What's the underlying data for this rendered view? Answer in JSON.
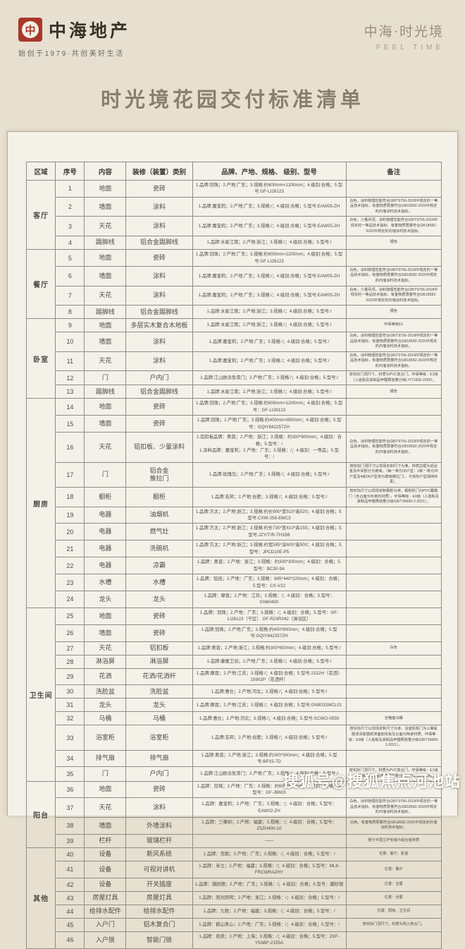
{
  "colors": {
    "page_bg": "#e7e0d0",
    "paper_bg": "#f4f1e9",
    "seal_red": "#a9382c",
    "title_color": "#8b7e6d",
    "table_border": "#8f8c85"
  },
  "header": {
    "brand_name": "中海地产",
    "brand_tagline": "始创于1979·共创美好生活",
    "seal_glyph": "中",
    "project_logo_line1": "中海·时光境",
    "project_logo_line2": "FEEL TIME"
  },
  "title": "时光境花园交付标准清单",
  "watermark": "搜狐号@搜狐焦点河池站",
  "table": {
    "columns": [
      "区域",
      "序号",
      "内容",
      "装修（装置）类别",
      "品牌、产地、规格、 级别、型号",
      "备注"
    ],
    "sections": [
      {
        "area": "客厅",
        "rows": [
          {
            "no": "1",
            "content": "地面",
            "category": "瓷砖",
            "spec": "1.品牌:冠珠；2.产地:广东；3.规格:约600mm×1200mm；4.级别:合格；5.型号:GF-LI26123",
            "remark": ""
          },
          {
            "no": "2",
            "content": "墙面",
            "category": "涂料",
            "spec": "1.品牌:嘉宝莉；2.产地:广东；3.规格:/；4.级别:合格；5.型号:EAW05-ZH",
            "remark": "白色，涂料物理性能符合GB/T9756-2018中规定的一等品技术指标，有害物质限量符合GB18582-2020中规定的内墙涂料技术指标。"
          },
          {
            "no": "3",
            "content": "天花",
            "category": "涂料",
            "spec": "1.品牌:嘉宝莉；2.产地:广东；3.规格:/；4.级别:合格；5.型号:EAW05-ZH",
            "remark": "白色，少量吊顶，涂料物理性能符合GB/T9756-2018中规定的一等品技术指标，有害物质限量符合GB18582-2020中规定的内墙涂料技术指标。"
          },
          {
            "no": "4",
            "content": "踢脚线",
            "category": "铝合金踢脚线",
            "spec": "1.品牌:水星江南；2.产地:浙江；3.规格:/；4.级别:合格；5.型号:/",
            "remark": "银色"
          }
        ]
      },
      {
        "area": "餐厅",
        "rows": [
          {
            "no": "5",
            "content": "地面",
            "category": "瓷砖",
            "spec": "1.品牌:冠珠；2.产地:广东；3.规格:约600mm×1200mm；4.级别:合格；5.型号:GF-LI26123",
            "remark": ""
          },
          {
            "no": "6",
            "content": "墙面",
            "category": "涂料",
            "spec": "1.品牌:嘉宝莉；2.产地:广东；3.规格:/；4.级别:合格；5.型号:EAW05-ZH",
            "remark": "白色，涂料物理性能符合GB/T9756-2018中规定的一等品技术指标，有害物质限量符合GB18582-2020中规定的内墙涂料技术指标。"
          },
          {
            "no": "7",
            "content": "天花",
            "category": "涂料",
            "spec": "1.品牌:嘉宝莉；2.产地:广东；3.规格:/；4.级别:合格；5.型号:EAW05-ZH",
            "remark": "白色，少量吊顶，涂料物理性能符合GB/T9756-2018中规定的一等品技术指标，有害物质限量符合GB18582-2020中规定的内墙涂料技术指标。"
          },
          {
            "no": "8",
            "content": "踢脚线",
            "category": "铝合金踢脚线",
            "spec": "1.品牌:水星江南；2.产地:浙江；3.规格:/；4.级别:合格；5.型号:/",
            "remark": "银色"
          }
        ]
      },
      {
        "area": "卧室",
        "rows": [
          {
            "no": "9",
            "content": "地面",
            "category": "多层实木复合木地板",
            "spec": "1.品牌:水星江南；2.产地:浙江；3.规格:/；4.级别:合格；5.型号:/",
            "remark": "环保等级E1"
          },
          {
            "no": "10",
            "content": "墙面",
            "category": "涂料",
            "spec": "1.品牌:嘉宝莉；2.产地:广东；3.规格:/；4.级别:合格；5.型号:/",
            "remark": "白色，涂料物理性能符合GB/T9756-2018中规定的一等品技术指标，有害物质限量符合GB18582-2020中规定的内墙涂料技术指标。"
          },
          {
            "no": "11",
            "content": "天花",
            "category": "涂料",
            "spec": "1.品牌:嘉宝莉；2.产地:广东；3.规格:/；4.级别:合格；5.型号:/",
            "remark": "白色，涂料物理性能符合GB/T9756-2018中规定的一等品技术指标，有害物质限量符合GB18582-2020中规定的内墙涂料技术指标。"
          },
          {
            "no": "12",
            "content": "门",
            "category": "户内门",
            "spec": "1.品牌:江山欧派免漆门；2.产地:广东；3.规格:/；4.级别:合格；5.型号:/",
            "remark": "按实际门洞尺寸，材质为PVC复合门，环保等级：E1级（人造板及其制品甲醛释放量分级LY/T1926-2009）。"
          },
          {
            "no": "13",
            "content": "踢脚线",
            "category": "铝合金踢脚线",
            "spec": "1.品牌:水星江南；2.产地:浙江；3.规格:/；4.级别:合格；5.型号:/",
            "remark": "银色"
          }
        ]
      },
      {
        "area": "厨房",
        "rows": [
          {
            "no": "14",
            "content": "地面",
            "category": "瓷砖",
            "spec": "1.品牌:冠珠；2.产地:广东；3.规格:约600mm×1200mm；4.级别:合格；5.型号：GF-LI26123",
            "remark": ""
          },
          {
            "no": "15",
            "content": "墙面",
            "category": "瓷砖",
            "spec": "1.品牌:冠珠；2.产地:广东；3.规格:约400mm×800mm；4.级别:合格；5.型号：GQIY842257ZH",
            "remark": ""
          },
          {
            "no": "16",
            "content": "天花",
            "category": "铝扣板、少量涂料",
            "spec": "1.铝扣板品牌：奥普；2.产地：浙江；3.规格：约300*600mm；4.级别：合格；5.型号：/\n1.涂料品牌：嘉宝莉；2.产地：广东；3.规格：/；4.级别：一等品；5.型号：/",
            "remark": "白色，涂料物理性能符合GB/T9756-2018中规定的一等品技术指标，有害物质限量符合GB18582-2020中规定的内墙涂料技术指标。"
          },
          {
            "no": "17",
            "content": "门",
            "category": "铝合金\n推拉门",
            "spec": "1.品牌:玫瑰岛；2.产地:广东；3.规格:/；4.级别:合格；5.型号:/",
            "remark": "按实际门洞尺寸以现场定制尺寸为准，材质边框为铝合金及中间部分为玻璃，（每一单元05户型：3栋一单元05户型及4栋06户型将为玻璃推拉门），与实际户型保持匹配。"
          },
          {
            "no": "18",
            "content": "橱柜",
            "category": "橱柜",
            "spec": "1.品牌:志邦；2.产地:合肥；3.规格:/；4.级别:合格；5.型号:/",
            "remark": "按实际尺寸以现场定制橱柜为准，橱柜柜门为PVC覆膜门（含台面为石英石材质），环保等级：E0级（人造板及其制品甲醛释放量分级GB/T39600-2-2021）。"
          },
          {
            "no": "19",
            "content": "电器",
            "category": "油烟机",
            "spec": "1.品牌:方太；2.产地:浙江；3.规格:约长900*宽515*高520；4.级别:合格；5.型号:CXW-258-EMC3",
            "remark": ""
          },
          {
            "no": "20",
            "content": "电器",
            "category": "燃气灶",
            "spec": "1.品牌:方太；2.产地:浙江；3.规格:约长730*宽410*高155；4.级别:合格；5.型号:JZY/T/R-TH33B",
            "remark": ""
          },
          {
            "no": "21",
            "content": "电器",
            "category": "洗碗机",
            "spec": "1.品牌:方太；2.产地:浙江；3.规格:约宽595*深605*高500；4.级别:合格；5.型号：JPCD10E-P5",
            "remark": ""
          },
          {
            "no": "22",
            "content": "电器",
            "category": "凉霸",
            "spec": "1.品牌：奥普；2.产地：浙江；3.规格：约300*300mm；4.级别：合格；5.型号：BC30-9A",
            "remark": ""
          },
          {
            "no": "23",
            "content": "水槽",
            "category": "水槽",
            "spec": "1.品牌：铂佳；2.产地：广东；3.规格：685*440*220mm；4.级别：合格；5.型号：CX-V22",
            "remark": ""
          },
          {
            "no": "24",
            "content": "龙头",
            "category": "龙头",
            "spec": "1.品牌：摩恩；2.产地：江苏；3.规格：/；4.级别：合格；5.型号：GN60400",
            "remark": ""
          }
        ]
      },
      {
        "area": "卫生间",
        "rows": [
          {
            "no": "25",
            "content": "地面",
            "category": "瓷砖",
            "spec": "1.品牌：冠珠；2.产地：广东；3.规格：/；4.级别：合格；5.型号：GF-LI26123（干区）  GF-R23R042（淋浴区）",
            "remark": ""
          },
          {
            "no": "26",
            "content": "墙面",
            "category": "瓷砖",
            "spec": "1.品牌:冠珠；2.产地:广东；3.规格:约400*800mm；4.级别:合格；5.型号:GQIY842257ZH",
            "remark": ""
          },
          {
            "no": "27",
            "content": "天花",
            "category": "铝扣板",
            "spec": "1.品牌:奥普；2.产地:浙江；3.规格:约300*600mm；4.级别:合格；5.型号:/",
            "remark": "白色"
          },
          {
            "no": "28",
            "content": "淋浴屏",
            "category": "淋浴屏",
            "spec": "1.品牌:康健卫浴；2.产地:广东；3.规格:/；4.级别:合格；5.型号:/",
            "remark": ""
          },
          {
            "no": "29",
            "content": "花洒",
            "category": "花洒/花洒杆",
            "spec": "1.品牌:摩恩；2.产地:江苏；3.规格:/；4.级别:合格；5.型号:2152H（花洒）15902P（花洒杆）",
            "remark": ""
          },
          {
            "no": "30",
            "content": "洗脸盆",
            "category": "洗脸盆",
            "spec": "1.品牌:惠仕；2.产地:河北；3.规格:/；4.级别:合格；5.型号:/",
            "remark": ""
          },
          {
            "no": "31",
            "content": "龙头",
            "category": "龙头",
            "spec": "1.品牌:摩恩；2.产地:江苏；3.规格:/；4.级别:合格；5.型号:GN9032MCL01",
            "remark": ""
          },
          {
            "no": "32",
            "content": "马桶",
            "category": "马桶",
            "spec": "1.品牌:惠仕；2.产地:河北；3.规格:/；4.级别:合格；5.型号:SCWO-0550",
            "remark": "全釉面马桶"
          },
          {
            "no": "33",
            "content": "浴室柜",
            "category": "浴室柜",
            "spec": "1.品牌:志邦；2.产地:合肥；3.规格:/；4.级别:合格；5.型号:/",
            "remark": "按实际尺寸以现场定制尺寸为准，浴室柜柜门为三聚氰胺浸渍胶膜纸饰面刨花板及台面为陶瓷材质，环保等级：E0级（人造板及其制品甲醛释放量分级GB/T39600-2-2021）。"
          },
          {
            "no": "34",
            "content": "排气扇",
            "category": "排气扇",
            "spec": "1.品牌:奥普；2.产地:浙江；3.规格:约300*300mm；4.级别:合格；5.型号:BP15-7D",
            "remark": ""
          },
          {
            "no": "35",
            "content": "门",
            "category": "户内门",
            "spec": "1.品牌:江山欧派免漆门；2.产地:广东；3.规格:/；4.级别:合格；5.型号:/",
            "remark": "按实际门洞尺寸，材质为PVC复合门，环保等级：E1级（人造板及其制品甲醛释放量分级LY/T1926-2009）。"
          }
        ]
      },
      {
        "area": "阳台",
        "rows": [
          {
            "no": "36",
            "content": "地面",
            "category": "瓷砖",
            "spec": "1.品牌：冠珠；2.产地：广东；3.规格：约600*600mm；4.级别：合格；5.型号：GF-JB603",
            "remark": ""
          },
          {
            "no": "37",
            "content": "天花",
            "category": "涂料",
            "spec": "1.品牌：嘉宝莉；2.产地：广东；3.规格：/；4.级别：合格；5.型号：EAW02-ZH",
            "remark": "白色，涂料物理性能符合GB/T9756-2018中规定的一等品技术指标，有害物质限量符合GB18582-2020中规定的内墙涂料技术指标。"
          },
          {
            "no": "38",
            "content": "墙面",
            "category": "外墙涂料",
            "spec": "1.品牌：三棵树；2.产地：福建；3.规格：/；4.级别：合格；5.型号：Z5ZH400-10",
            "remark": "白色，有害物质限量符合GB18582-2020中规定的外墙涂料技术指标。"
          },
          {
            "no": "39",
            "content": "栏杆",
            "category": "玻璃栏杆",
            "spec": "——",
            "remark": "部分平层立杆安装为铝合金材质"
          }
        ]
      },
      {
        "area": "其他",
        "rows": [
          {
            "no": "40",
            "content": "设备",
            "category": "新风系统",
            "spec": "1.品牌：百朗；2.产地：广东；3.规格：/；4.级别：合格；5.型号：/",
            "remark": "位置：客厅、卧室"
          },
          {
            "no": "41",
            "content": "设备",
            "category": "可视对讲机",
            "spec": "1.品牌：米立；2.产地：福建；3.规格：/；4.级别：合格；5.型号：ML8-FRCWRAZHY",
            "remark": "位置：餐厅"
          },
          {
            "no": "42",
            "content": "设备",
            "category": "开关插座",
            "spec": "1.品牌：施耐德；2.产地：广东；3.规格：/；4.级别：合格；5.型号：磨砂银",
            "remark": "位置：全屋"
          },
          {
            "no": "43",
            "content": "房屋灯具",
            "category": "房屋灯具",
            "spec": "1.品牌：阳光照明；2.产地：浙江；3.规格：/；4.级别：合格；5.型号：/",
            "remark": "位置：全屋"
          },
          {
            "no": "44",
            "content": "给排水配件",
            "category": "给排水配件",
            "spec": "1.品牌：九牧；2.产地：福建；3.规格：/；4.级别：合格；5.型号：/",
            "remark": "位置：厨房、卫生间"
          },
          {
            "no": "45",
            "content": "入户门",
            "category": "铝木复合门",
            "spec": "1.品牌：鹤山美心；2.产地：广东；3.规格：/；4.级别：合格；5.型号：/",
            "remark": "按实际门洞尺寸，材质为防火复合门。"
          },
          {
            "no": "46",
            "content": "入户锁",
            "category": "智能门锁",
            "spec": "1.品牌：统美；2.产地：上海；3.规格：/；4.级别：合格；5.型号：ZKF-Y5ABF-2155A",
            "remark": ""
          }
        ]
      }
    ]
  }
}
